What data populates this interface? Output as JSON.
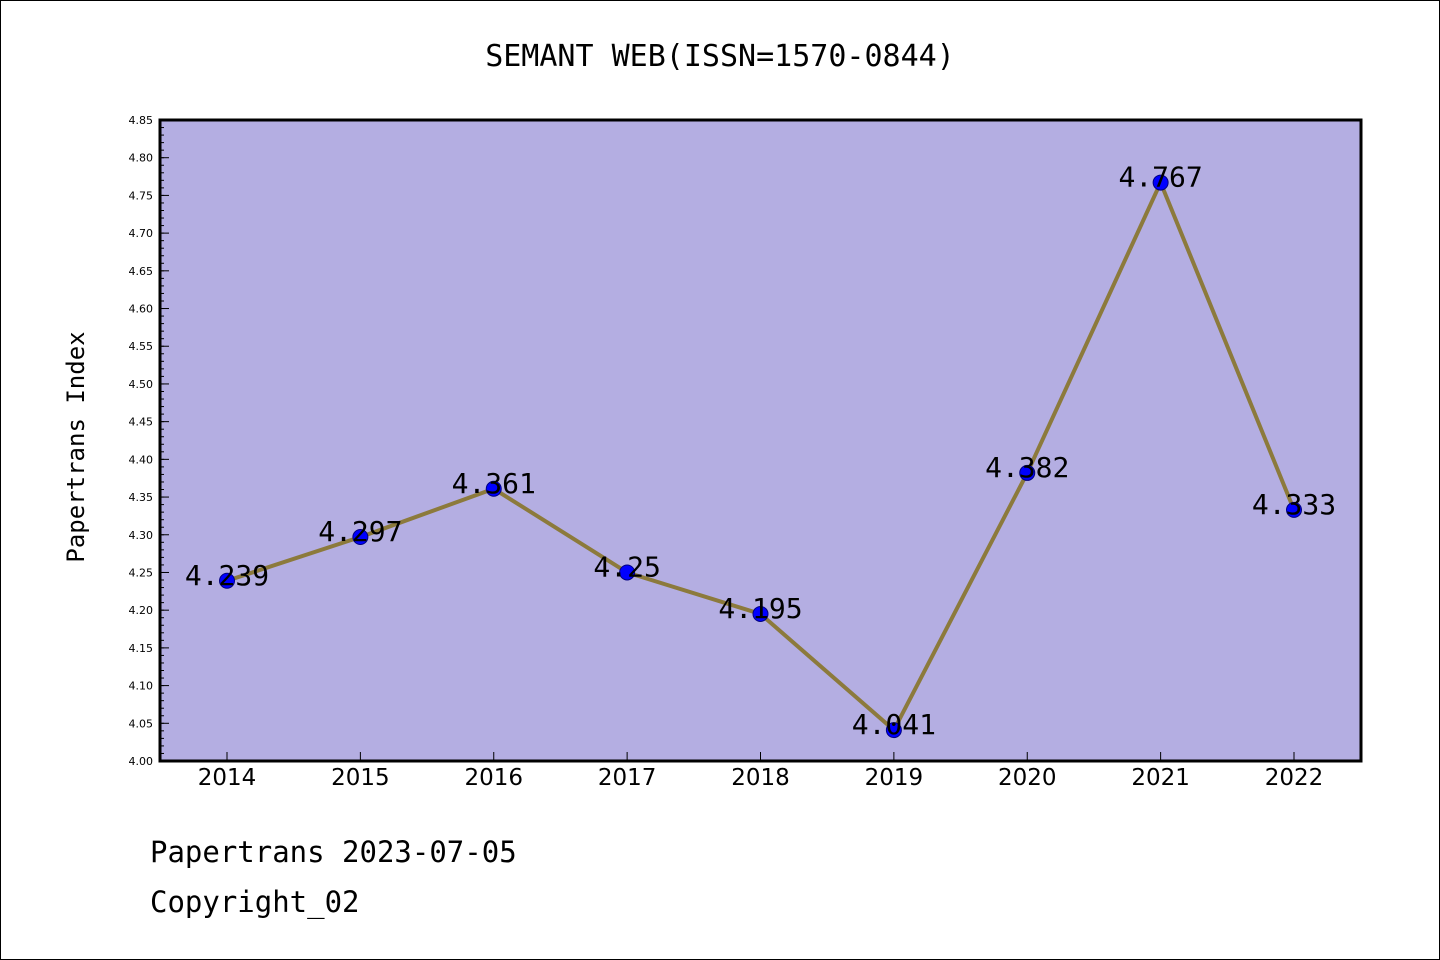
{
  "chart_data": {
    "type": "line",
    "title": "SEMANT WEB(ISSN=1570-0844)",
    "ylabel": "Papertrans Index",
    "xlabel": "",
    "categories": [
      "2014",
      "2015",
      "2016",
      "2017",
      "2018",
      "2019",
      "2020",
      "2021",
      "2022"
    ],
    "series": [
      {
        "values": [
          4.239,
          4.297,
          4.361,
          4.25,
          4.195,
          4.041,
          4.382,
          4.767,
          4.333
        ],
        "data_labels": [
          "4.239",
          "4.297",
          "4.361",
          "4.25",
          "4.195",
          "4.041",
          "4.382",
          "4.767",
          "4.333"
        ]
      }
    ],
    "ylim": [
      4.0,
      4.85
    ],
    "y_ticks": [
      "4.00",
      "4.05",
      "4.10",
      "4.15",
      "4.20",
      "4.25",
      "4.30",
      "4.35",
      "4.40",
      "4.45",
      "4.50",
      "4.55",
      "4.60",
      "4.65",
      "4.70",
      "4.75",
      "4.80",
      "4.85"
    ],
    "y_minor_step": 0.01,
    "grid": false,
    "legend": "none",
    "colors": {
      "plot_background": "#b4aee2",
      "line": "#8c7a3c",
      "marker": "#0000ff",
      "marker_edge": "#000080"
    }
  },
  "footer": {
    "date_line": "Papertrans 2023-07-05",
    "copyright": "Copyright_02"
  }
}
